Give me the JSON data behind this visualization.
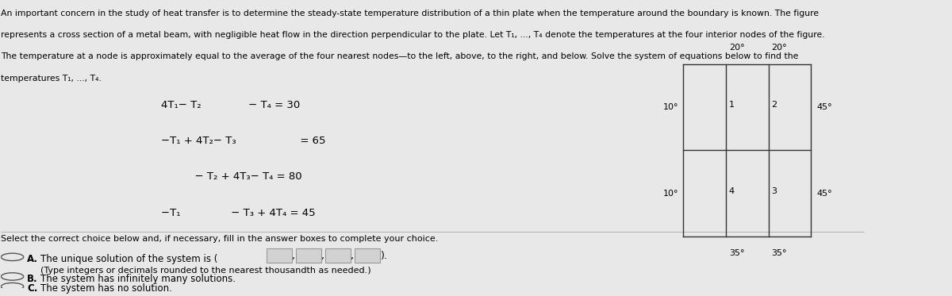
{
  "bg_color": "#e8e8e8",
  "text_color": "#000000",
  "title_line1": "An important concern in the study of heat transfer is to determine the steady-state temperature distribution of a thin plate when the temperature around the boundary is known. The figure",
  "title_line2": "represents a cross section of a metal beam, with negligible heat flow in the direction perpendicular to the plate. Let T₁, ..., T₄ denote the temperatures at the four interior nodes of the figure.",
  "title_line3": "The temperature at a node is approximately equal to the average of the four nearest nodes—to the left, above, to the right, and below. Solve the system of equations below to find the",
  "title_line4": "temperatures T₁, ..., T₄.",
  "eq1": "4T₁ −  T₂          −  T₄ = 30",
  "eq2": "−T₁ + 4T₂ −  T₃               = 65",
  "eq3": "         −  T₂ + 4T₃ −  T₄ = 80",
  "eq4": "−T₁          −  T₃ + 4T₄ = 45",
  "select_text": "Select the correct choice below and, if necessary, fill in the answer boxes to complete your choice.",
  "choice_A_label": "A.",
  "choice_A_text": "The unique solution of the system is (",
  "choice_A_sub": "(Type integers or decimals rounded to the nearest thousandth as needed.)",
  "choice_B_label": "B.",
  "choice_B_text": "The system has infinitely many solutions.",
  "choice_C_label": "C.",
  "choice_C_text": "The system has no solution.",
  "grid_top_labels": [
    "20°",
    "20°"
  ],
  "grid_left_labels": [
    "10°",
    "10°"
  ],
  "grid_right_labels": [
    "45°",
    "45°"
  ],
  "grid_bottom_labels": [
    "35°",
    "35°"
  ],
  "grid_node_labels": [
    "1",
    "2",
    "4",
    "3"
  ],
  "grid_line_color": "#333333",
  "grid_box_color": "#cccccc",
  "circle_color": "#555555"
}
